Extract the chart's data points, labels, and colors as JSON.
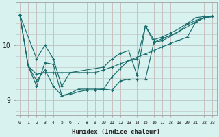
{
  "xlabel": "Humidex (Indice chaleur)",
  "ylabel": "",
  "bg_color": "#d8f2f0",
  "line_color": "#1a6b6b",
  "grid_color_h": "#c0cece",
  "grid_color_v": "#c8bebe",
  "axis_color": "#999999",
  "xlim": [
    -0.5,
    23.5
  ],
  "ylim": [
    8.72,
    10.78
  ],
  "yticks": [
    9,
    10
  ],
  "xticks": [
    0,
    1,
    2,
    3,
    4,
    5,
    6,
    7,
    8,
    9,
    10,
    11,
    12,
    13,
    14,
    15,
    16,
    17,
    18,
    19,
    20,
    21,
    22,
    23
  ],
  "lines": [
    {
      "x": [
        0,
        1,
        2,
        3,
        4,
        5,
        6,
        7,
        8,
        9,
        10,
        11,
        12,
        13,
        14,
        15,
        16,
        17,
        18,
        19,
        20,
        21,
        22,
        23
      ],
      "y": [
        10.55,
        9.62,
        9.47,
        9.5,
        9.5,
        9.5,
        9.5,
        9.5,
        9.5,
        9.5,
        9.55,
        9.6,
        9.66,
        9.72,
        9.78,
        9.84,
        9.9,
        9.97,
        10.03,
        10.09,
        10.15,
        10.42,
        10.5,
        10.52
      ]
    },
    {
      "x": [
        0,
        2,
        3,
        4,
        5,
        6,
        10,
        11,
        12,
        13,
        14,
        15,
        16,
        17,
        21,
        22,
        23
      ],
      "y": [
        10.55,
        9.75,
        10.0,
        9.75,
        9.25,
        9.5,
        9.6,
        9.75,
        9.85,
        9.9,
        9.45,
        10.35,
        10.05,
        10.08,
        10.42,
        10.5,
        10.52
      ]
    },
    {
      "x": [
        0,
        1,
        2,
        3,
        4,
        5,
        6,
        7,
        8,
        9,
        10,
        11,
        12,
        13,
        14,
        15,
        16,
        17,
        18,
        19,
        20,
        21,
        22,
        23
      ],
      "y": [
        10.55,
        9.62,
        9.35,
        9.55,
        9.25,
        9.08,
        9.1,
        9.15,
        9.18,
        9.18,
        9.2,
        9.18,
        9.35,
        9.38,
        9.38,
        9.38,
        10.05,
        10.12,
        10.18,
        10.25,
        10.38,
        10.45,
        10.5,
        10.52
      ]
    },
    {
      "x": [
        0,
        1,
        2,
        3,
        4,
        5,
        6,
        7,
        8,
        9,
        10,
        11,
        12,
        13,
        14,
        15,
        16,
        17,
        18,
        19,
        20,
        21,
        22,
        23
      ],
      "y": [
        10.55,
        9.62,
        9.25,
        9.68,
        9.65,
        9.08,
        9.12,
        9.2,
        9.2,
        9.2,
        9.2,
        9.42,
        9.58,
        9.72,
        9.75,
        10.35,
        10.1,
        10.15,
        10.22,
        10.3,
        10.4,
        10.5,
        10.52,
        10.52
      ]
    }
  ]
}
